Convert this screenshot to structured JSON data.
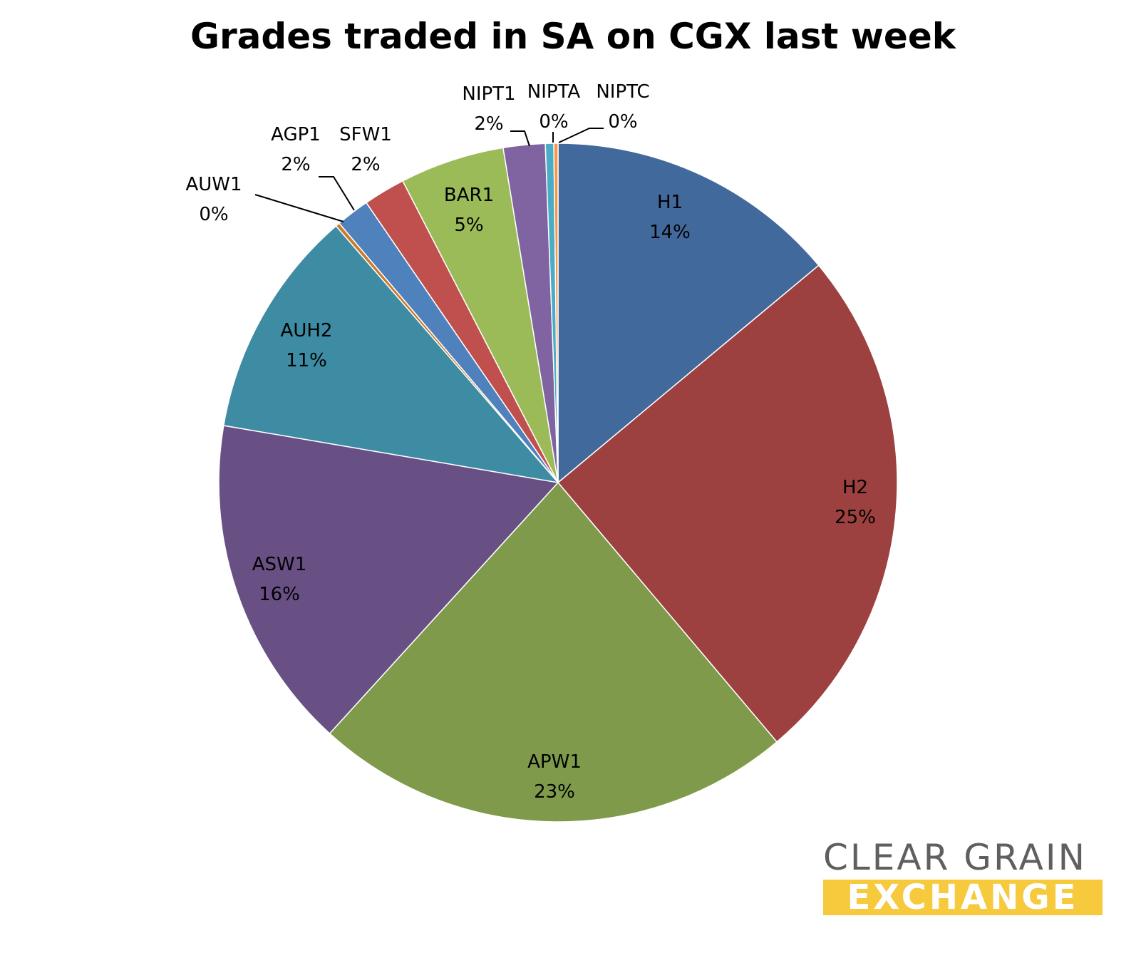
{
  "chart_data": {
    "type": "pie",
    "title": "Grades traded in SA on CGX last week",
    "slices": [
      {
        "label": "H1",
        "pct_label": "14%",
        "value": 14,
        "color": "#41699b"
      },
      {
        "label": "H2",
        "pct_label": "25%",
        "value": 25,
        "color": "#9d4040"
      },
      {
        "label": "APW1",
        "pct_label": "23%",
        "value": 23,
        "color": "#7f9a4b"
      },
      {
        "label": "ASW1",
        "pct_label": "16%",
        "value": 16,
        "color": "#695084"
      },
      {
        "label": "AUH2",
        "pct_label": "11%",
        "value": 11,
        "color": "#3d8ca3"
      },
      {
        "label": "AUW1",
        "pct_label": "0%",
        "value": 0.2,
        "color": "#c97a2f"
      },
      {
        "label": "AGP1",
        "pct_label": "2%",
        "value": 1.6,
        "color": "#4f81bd"
      },
      {
        "label": "SFW1",
        "pct_label": "2%",
        "value": 2,
        "color": "#c0504d"
      },
      {
        "label": "BAR1",
        "pct_label": "5%",
        "value": 5,
        "color": "#9bbb59"
      },
      {
        "label": "NIPT1",
        "pct_label": "2%",
        "value": 2,
        "color": "#8064a2"
      },
      {
        "label": "NIPTA",
        "pct_label": "0%",
        "value": 0.4,
        "color": "#4bacc6"
      },
      {
        "label": "NIPTC",
        "pct_label": "0%",
        "value": 0.2,
        "color": "#f79646"
      }
    ]
  },
  "logo": {
    "line1": "CLEAR GRAIN",
    "line2": "EXCHANGE",
    "accent": "#f7c93c",
    "text_color": "#5f5f5f"
  }
}
